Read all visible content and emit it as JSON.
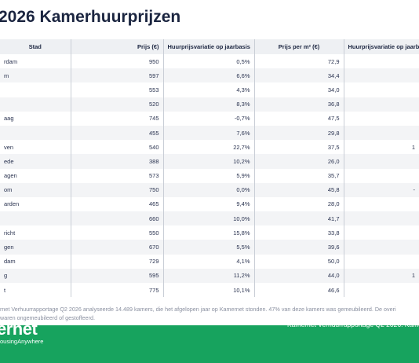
{
  "header": {
    "title": "2026 Kamerhuurprijzen"
  },
  "table": {
    "columns": [
      "Stad",
      "Prijs (€)",
      "Huurprijsvariatie op jaarbasis",
      "Prijs per m² (€)",
      "Huurprijsvariatie op jaarba"
    ],
    "rows": [
      [
        "rdam",
        "950",
        "0,5%",
        "72,9",
        null
      ],
      [
        "m",
        "597",
        "6,6%",
        "34,4",
        null
      ],
      [
        null,
        "553",
        "4,3%",
        "34,0",
        null
      ],
      [
        null,
        "520",
        "8,3%",
        "36,8",
        null
      ],
      [
        "aag",
        "745",
        "-0,7%",
        "47,5",
        null
      ],
      [
        null,
        "455",
        "7,6%",
        "29,8",
        null
      ],
      [
        "ven",
        "540",
        "22,7%",
        "37,5",
        "1"
      ],
      [
        "ede",
        "388",
        "10,2%",
        "26,0",
        null
      ],
      [
        "agen",
        "573",
        "5,9%",
        "35,7",
        null
      ],
      [
        "om",
        "750",
        "0,0%",
        "45,8",
        "-"
      ],
      [
        "arden",
        "465",
        "9,4%",
        "28,0",
        null
      ],
      [
        null,
        "660",
        "10,0%",
        "41,7",
        null
      ],
      [
        "richt",
        "550",
        "15,8%",
        "33,8",
        null
      ],
      [
        "gen",
        "670",
        "5,5%",
        "39,6",
        null
      ],
      [
        "dam",
        "729",
        "4,1%",
        "50,0",
        null
      ],
      [
        "g",
        "595",
        "11,2%",
        "44,0",
        "1"
      ],
      [
        "t",
        "775",
        "10,1%",
        "46,6",
        null
      ]
    ]
  },
  "footnote": [
    "rnet Verhuurrapportage Q2 2026 analyseerde 14.489 kamers, die het afgelopen jaar op Kamernet stonden. 47% van deze kamers was gemeubileerd. De overi",
    "waren ongemeubileerd of gestoffeerd."
  ],
  "footer": {
    "logo": "ernet",
    "logo_subtitle": "ousingAnywhere",
    "text": "Kamernet Verhuurrapportage Q2 2026. Kamer"
  }
}
